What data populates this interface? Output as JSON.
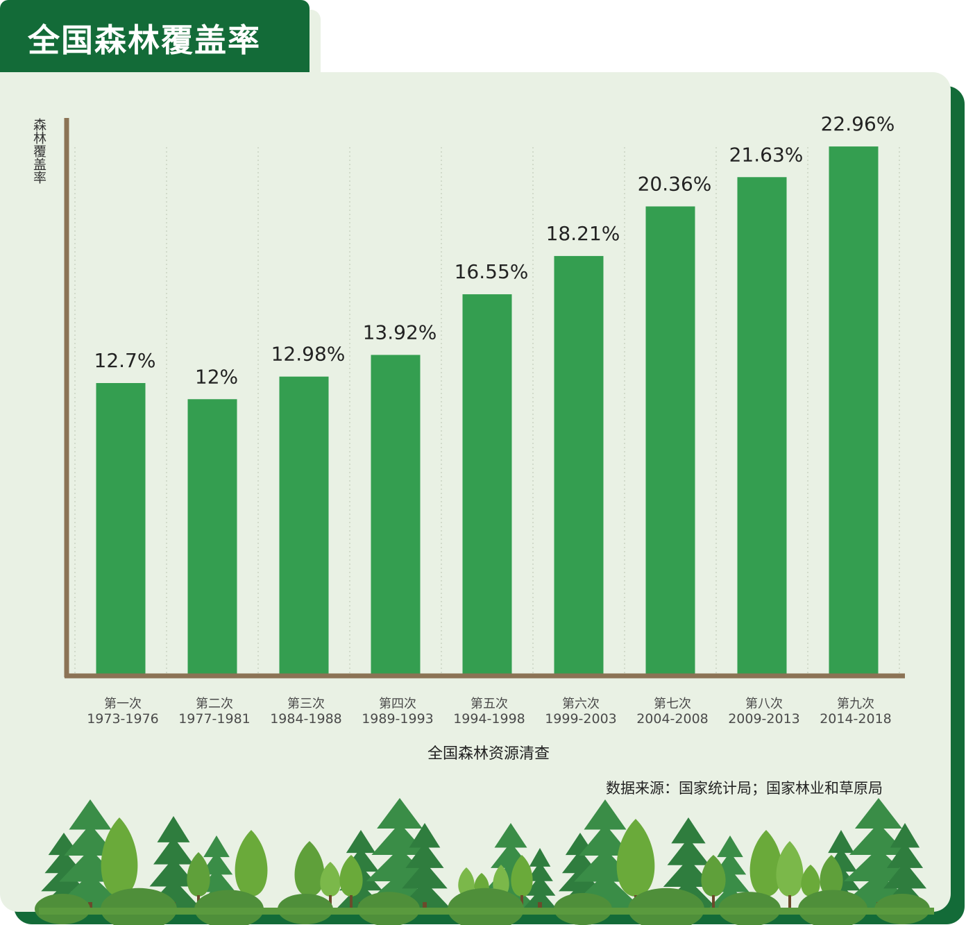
{
  "title": "全国森林覆盖率",
  "source_note": "数据来源：国家统计局；国家林业和草原局",
  "colors": {
    "header_bg": "#136b38",
    "card_bg": "#e9f1e4",
    "bar": "#349e50",
    "axis": "#8b7355"
  },
  "chart_data": {
    "type": "bar",
    "title": "全国森林覆盖率",
    "ylabel": "森林覆盖率",
    "xlabel": "全国森林资源清查",
    "categories": [
      [
        "第一次",
        "1973-1976"
      ],
      [
        "第二次",
        "1977-1981"
      ],
      [
        "第三次",
        "1984-1988"
      ],
      [
        "第四次",
        "1989-1993"
      ],
      [
        "第五次",
        "1994-1998"
      ],
      [
        "第六次",
        "1999-2003"
      ],
      [
        "第七次",
        "2004-2008"
      ],
      [
        "第八次",
        "2009-2013"
      ],
      [
        "第九次",
        "2014-2018"
      ]
    ],
    "values": [
      12.7,
      12,
      12.98,
      13.92,
      16.55,
      18.21,
      20.36,
      21.63,
      22.96
    ],
    "value_labels": [
      "12.7%",
      "12%",
      "12.98%",
      "13.92%",
      "16.55%",
      "18.21%",
      "20.36%",
      "21.63%",
      "22.96%"
    ],
    "ylim": [
      0,
      25.4
    ],
    "grid": "vertical-dotted",
    "legend": "none"
  }
}
